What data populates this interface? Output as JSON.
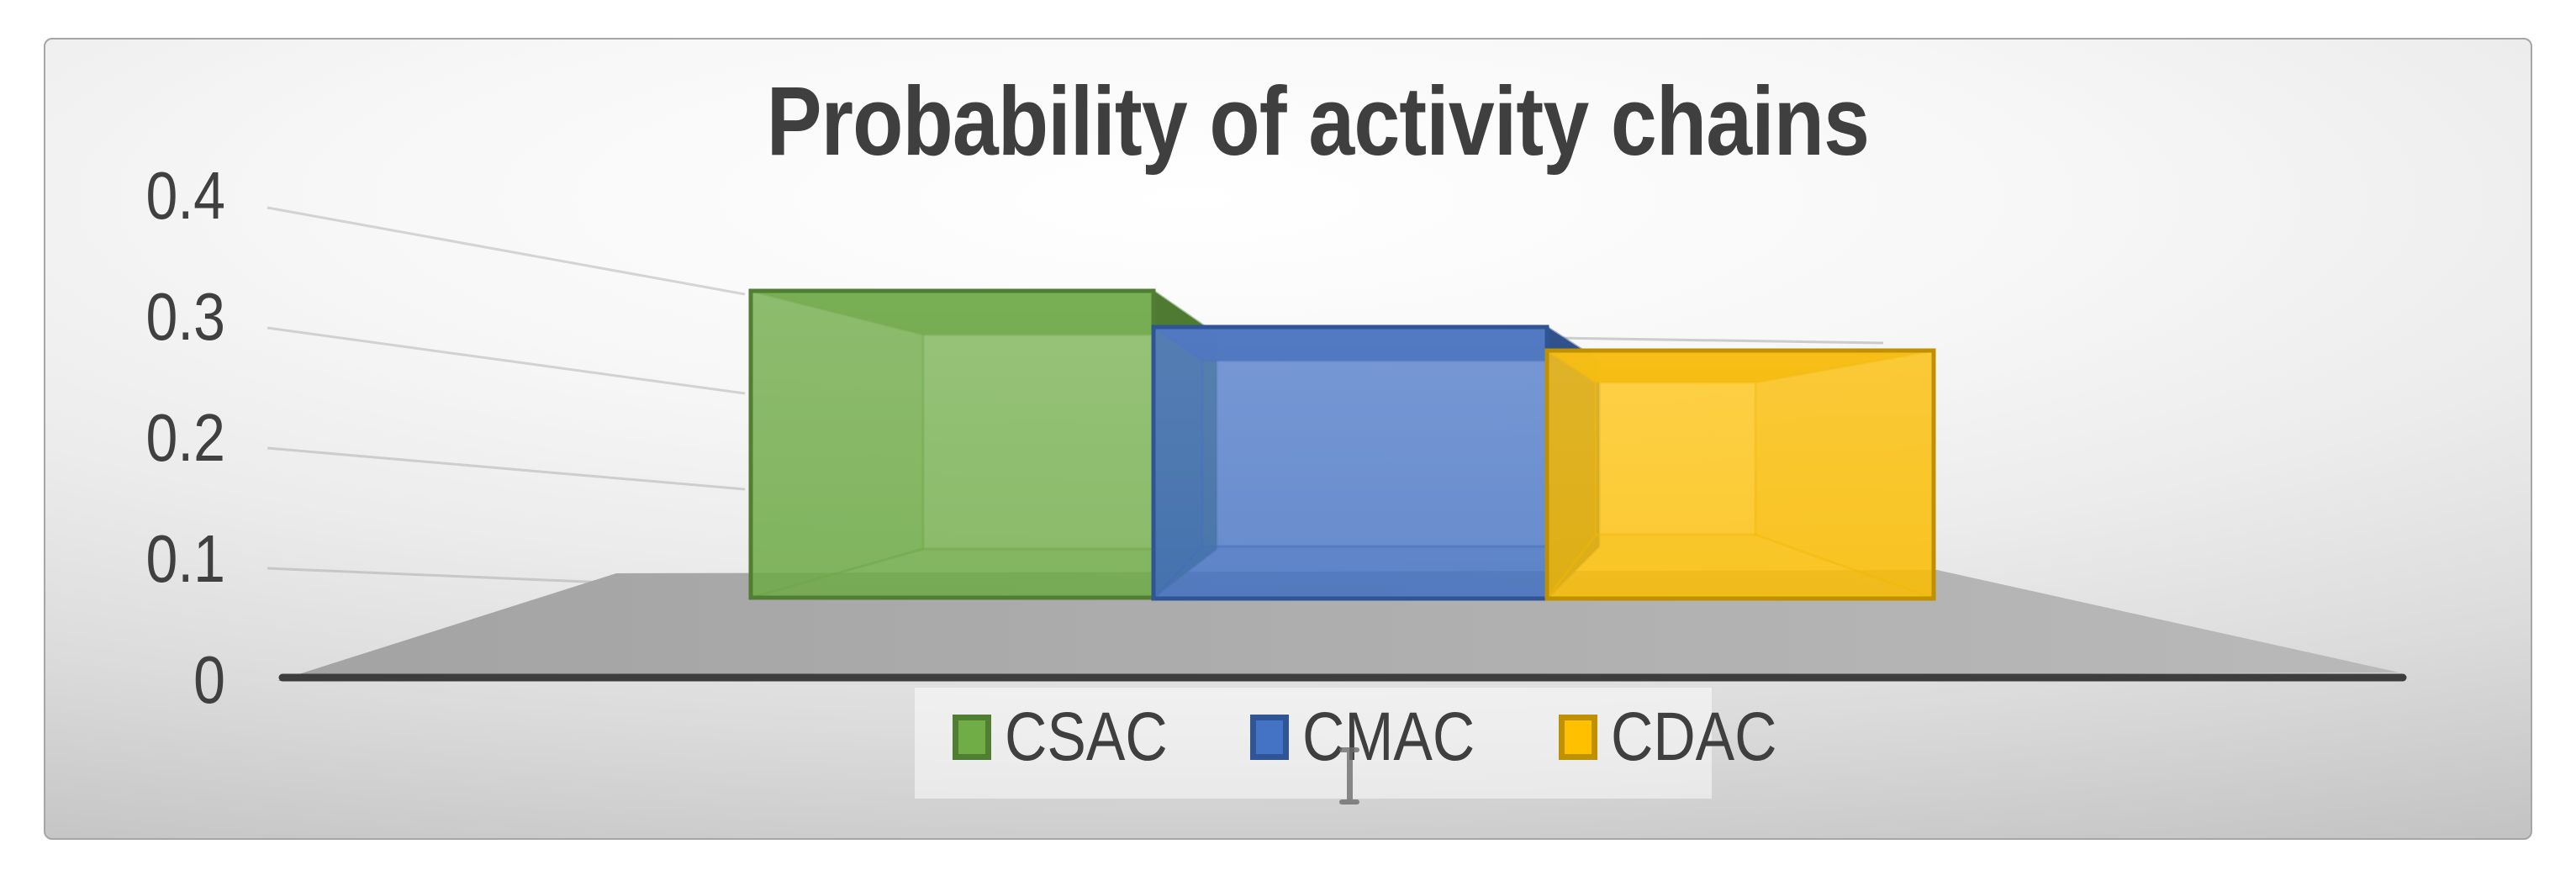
{
  "chart_data": {
    "type": "bar",
    "variant": "3d-perspective-column",
    "title": "Probability of activity chains",
    "categories": [
      ""
    ],
    "series": [
      {
        "name": "CSAC",
        "values": [
          0.32
        ],
        "color": "#70AD47",
        "border_color": "#507E32"
      },
      {
        "name": "CMAC",
        "values": [
          0.29
        ],
        "color": "#4472C4",
        "border_color": "#2F5597"
      },
      {
        "name": "CDAC",
        "values": [
          0.27
        ],
        "color": "#FFC000",
        "border_color": "#BF9000"
      }
    ],
    "ylim": [
      0,
      0.4
    ],
    "yticks": [
      "0",
      "0.1",
      "0.2",
      "0.3",
      "0.4"
    ],
    "grid": "faint perspective gridlines on left side wall and back wall",
    "legend_position": "bottom-center"
  },
  "style": {
    "title_color": "#3f3f3f",
    "axis_text_color": "#404040",
    "axis_line_color": "#3d3d3d",
    "floor_color_left": "#a3a3a3",
    "floor_color_right": "#b9b9b9",
    "panel_border_color": "#a6a6a6"
  },
  "cursor": {
    "type": "text-i-beam"
  }
}
